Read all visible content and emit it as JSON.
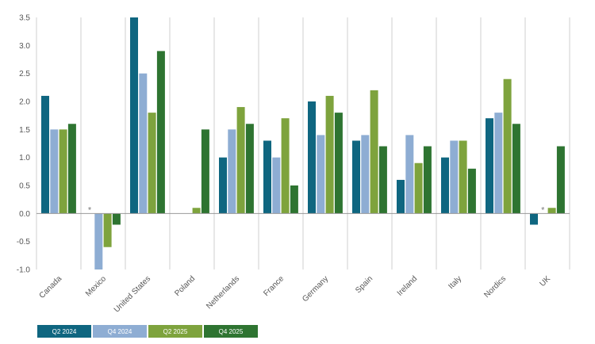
{
  "chart_data": {
    "type": "bar",
    "title": "",
    "xlabel": "",
    "ylabel": "",
    "ylim": [
      -1.0,
      3.5
    ],
    "yticks": [
      3.5,
      3.0,
      2.5,
      2.0,
      1.5,
      1.0,
      0.5,
      0.0,
      -0.5,
      -1.0
    ],
    "ytick_labels": [
      "3.5",
      "3.0",
      "2.5",
      "2.0",
      "1.5",
      "1.0",
      "0.5",
      "0.0",
      "-0.5",
      "-1.0"
    ],
    "categories": [
      "Canada",
      "Mexico",
      "United States",
      "Poland",
      "Netherlands",
      "France",
      "Germany",
      "Spain",
      "Ireland",
      "Italy",
      "Nordics",
      "UK"
    ],
    "series": [
      {
        "name": "Q2 2024",
        "color": "#0f6680",
        "values": [
          2.1,
          null,
          3.5,
          null,
          1.0,
          1.3,
          2.0,
          1.3,
          0.6,
          1.0,
          1.7,
          -0.2
        ]
      },
      {
        "name": "Q4 2024",
        "color": "#8eadd3",
        "values": [
          1.5,
          -1.0,
          2.5,
          null,
          1.5,
          1.0,
          1.4,
          1.4,
          1.4,
          1.3,
          1.8,
          null
        ]
      },
      {
        "name": "Q2 2025",
        "color": "#7ea33d",
        "values": [
          1.5,
          -0.6,
          1.8,
          0.1,
          1.9,
          1.7,
          2.1,
          2.2,
          0.9,
          1.3,
          2.4,
          0.1
        ]
      },
      {
        "name": "Q4 2025",
        "color": "#2e7431",
        "values": [
          1.6,
          -0.2,
          2.9,
          1.5,
          1.6,
          0.5,
          1.8,
          1.2,
          1.2,
          0.8,
          1.6,
          1.2
        ]
      }
    ],
    "annotations": [
      {
        "category": "Mexico",
        "series": "Q2 2024",
        "text": "*"
      },
      {
        "category": "UK",
        "series": "Q4 2024",
        "text": "*"
      }
    ],
    "legend_position": "bottom-left",
    "grid": "vertical category separators"
  }
}
